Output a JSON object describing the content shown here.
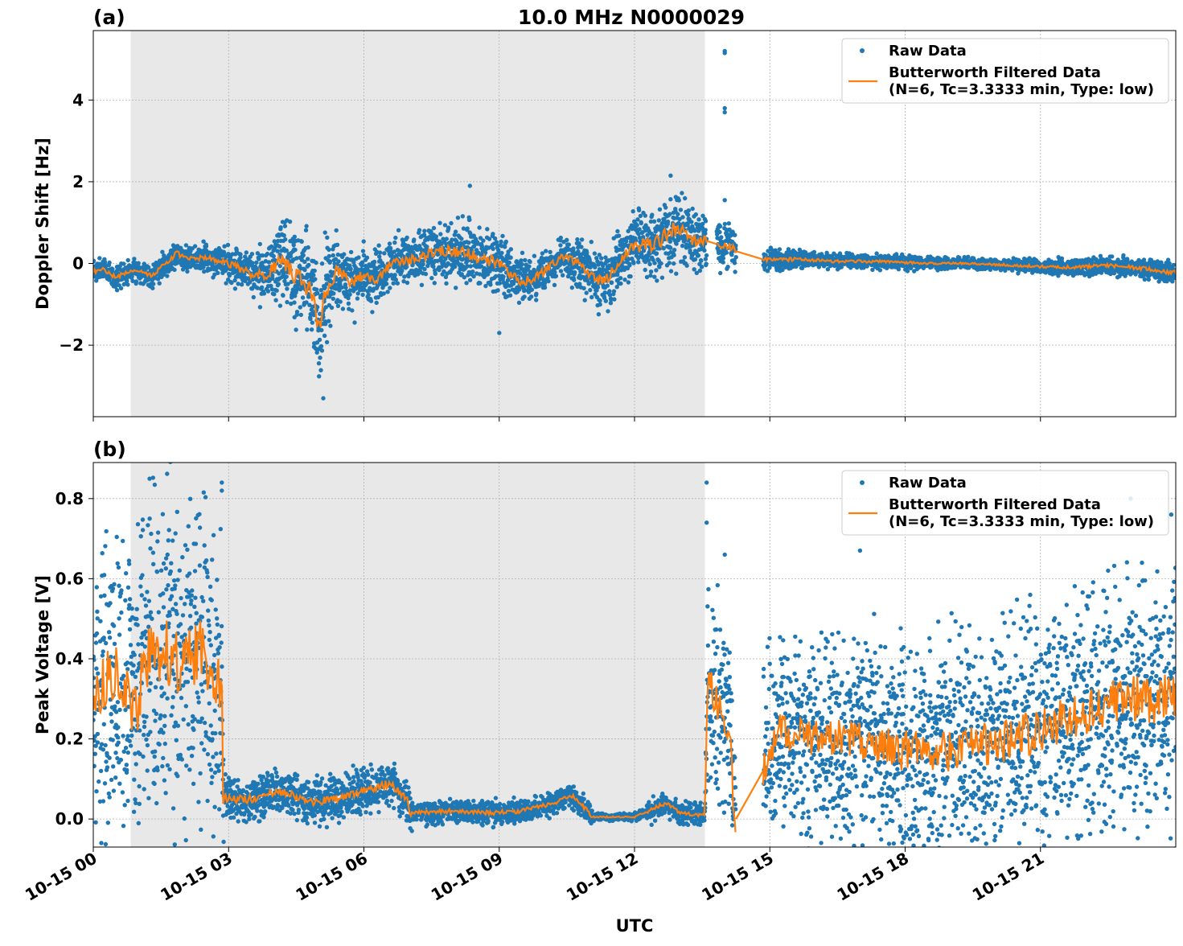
{
  "title": "10.0 MHz N0000029",
  "colors": {
    "raw": "#1f77b4",
    "filtered": "#ff7f0e",
    "shade": "#e8e8e8",
    "grid": "#b0b0b0"
  },
  "legend": {
    "raw": "Raw Data",
    "filtered_line1": "Butterworth Filtered Data",
    "filtered_line2": "(N=6, Tc=3.3333 min, Type: low)"
  },
  "x_axis": {
    "label": "UTC",
    "range_hours": [
      0,
      24
    ],
    "ticks": [
      {
        "hour": 0,
        "label": "10-15 00"
      },
      {
        "hour": 3,
        "label": "10-15 03"
      },
      {
        "hour": 6,
        "label": "10-15 06"
      },
      {
        "hour": 9,
        "label": "10-15 09"
      },
      {
        "hour": 12,
        "label": "10-15 12"
      },
      {
        "hour": 15,
        "label": "10-15 15"
      },
      {
        "hour": 18,
        "label": "10-15 18"
      },
      {
        "hour": 21,
        "label": "10-15 21"
      }
    ]
  },
  "chart_data": [
    {
      "type": "scatter",
      "panel": "(a)",
      "ylabel": "Doppler Shift [Hz]",
      "ylim": [
        -3.75,
        5.7
      ],
      "yticks": [
        {
          "v": -2,
          "label": "−2"
        },
        {
          "v": 0,
          "label": "0"
        },
        {
          "v": 2,
          "label": "2"
        },
        {
          "v": 4,
          "label": "4"
        }
      ],
      "shaded_hours": [
        0.83,
        13.56
      ],
      "gaps": [
        [
          13.6,
          13.82
        ],
        [
          14.25,
          14.85
        ]
      ],
      "grid": true,
      "legend_position": "top-right",
      "series": [
        {
          "name": "Raw Data",
          "kind": "points"
        },
        {
          "name": "Butterworth Filtered Data (N=6, Tc=3.3333 min, Type: low)",
          "kind": "line"
        }
      ],
      "trend": [
        [
          0.0,
          -0.2
        ],
        [
          0.25,
          -0.15
        ],
        [
          0.5,
          -0.35
        ],
        [
          0.75,
          -0.2
        ],
        [
          1.0,
          -0.15
        ],
        [
          1.3,
          -0.3
        ],
        [
          1.6,
          0.0
        ],
        [
          1.85,
          0.25
        ],
        [
          2.1,
          0.1
        ],
        [
          2.5,
          0.15
        ],
        [
          3.0,
          0.0
        ],
        [
          3.3,
          -0.15
        ],
        [
          3.6,
          -0.3
        ],
        [
          3.9,
          -0.2
        ],
        [
          4.2,
          0.05
        ],
        [
          4.5,
          -0.3
        ],
        [
          4.8,
          -0.6
        ],
        [
          5.0,
          -1.6
        ],
        [
          5.1,
          -0.9
        ],
        [
          5.4,
          -0.2
        ],
        [
          5.7,
          -0.45
        ],
        [
          6.0,
          -0.3
        ],
        [
          6.3,
          -0.4
        ],
        [
          6.6,
          0.0
        ],
        [
          6.9,
          0.1
        ],
        [
          7.2,
          0.1
        ],
        [
          7.5,
          0.3
        ],
        [
          7.9,
          0.3
        ],
        [
          8.3,
          0.25
        ],
        [
          8.6,
          0.1
        ],
        [
          8.9,
          0.05
        ],
        [
          9.2,
          -0.2
        ],
        [
          9.5,
          -0.45
        ],
        [
          9.8,
          -0.35
        ],
        [
          10.1,
          -0.1
        ],
        [
          10.4,
          0.15
        ],
        [
          10.8,
          0.0
        ],
        [
          11.0,
          -0.3
        ],
        [
          11.3,
          -0.45
        ],
        [
          11.6,
          -0.1
        ],
        [
          11.9,
          0.4
        ],
        [
          12.3,
          0.45
        ],
        [
          12.6,
          0.55
        ],
        [
          12.8,
          0.85
        ],
        [
          13.0,
          0.8
        ],
        [
          13.3,
          0.6
        ],
        [
          13.6,
          0.55
        ],
        [
          13.9,
          0.45
        ],
        [
          14.1,
          0.45
        ],
        [
          14.25,
          0.3
        ],
        [
          14.85,
          0.1
        ],
        [
          15.5,
          0.1
        ],
        [
          16.5,
          0.05
        ],
        [
          17.5,
          0.05
        ],
        [
          18.5,
          0.0
        ],
        [
          19.5,
          0.0
        ],
        [
          20.5,
          -0.05
        ],
        [
          21.5,
          -0.1
        ],
        [
          22.5,
          -0.05
        ],
        [
          23.3,
          -0.12
        ],
        [
          23.8,
          -0.2
        ],
        [
          24.0,
          -0.22
        ]
      ],
      "spread": [
        [
          0.0,
          0.12
        ],
        [
          1.0,
          0.12
        ],
        [
          2.8,
          0.15
        ],
        [
          3.5,
          0.25
        ],
        [
          4.2,
          0.45
        ],
        [
          5.0,
          0.65
        ],
        [
          5.3,
          0.4
        ],
        [
          6.0,
          0.3
        ],
        [
          7.2,
          0.25
        ],
        [
          8.3,
          0.35
        ],
        [
          9.5,
          0.25
        ],
        [
          10.5,
          0.2
        ],
        [
          11.0,
          0.35
        ],
        [
          11.8,
          0.3
        ],
        [
          12.8,
          0.45
        ],
        [
          13.6,
          0.3
        ],
        [
          14.2,
          0.2
        ],
        [
          14.85,
          0.12
        ],
        [
          16.0,
          0.08
        ],
        [
          20.0,
          0.06
        ],
        [
          22.5,
          0.1
        ],
        [
          24.0,
          0.12
        ]
      ],
      "outliers": [
        [
          14.0,
          5.2
        ],
        [
          14.0,
          5.15
        ],
        [
          14.0,
          3.8
        ],
        [
          14.0,
          3.7
        ],
        [
          14.0,
          1.55
        ],
        [
          8.35,
          1.9
        ],
        [
          12.8,
          2.15
        ],
        [
          5.1,
          -3.3
        ],
        [
          9.0,
          -1.7
        ]
      ]
    },
    {
      "type": "scatter",
      "panel": "(b)",
      "ylabel": "Peak Voltage [V]",
      "ylim": [
        -0.07,
        0.89
      ],
      "yticks": [
        {
          "v": 0.0,
          "label": "0.0"
        },
        {
          "v": 0.2,
          "label": "0.2"
        },
        {
          "v": 0.4,
          "label": "0.4"
        },
        {
          "v": 0.6,
          "label": "0.6"
        },
        {
          "v": 0.8,
          "label": "0.8"
        }
      ],
      "shaded_hours": [
        0.83,
        13.56
      ],
      "gaps": [
        [
          14.25,
          14.85
        ]
      ],
      "grid": true,
      "legend_position": "top-right",
      "series": [
        {
          "name": "Raw Data",
          "kind": "points"
        },
        {
          "name": "Butterworth Filtered Data (N=6, Tc=3.3333 min, Type: low)",
          "kind": "line"
        }
      ],
      "trend": [
        [
          0.0,
          0.3
        ],
        [
          0.5,
          0.38
        ],
        [
          0.9,
          0.25
        ],
        [
          1.2,
          0.4
        ],
        [
          1.6,
          0.42
        ],
        [
          2.0,
          0.38
        ],
        [
          2.4,
          0.42
        ],
        [
          2.85,
          0.35
        ],
        [
          2.88,
          0.05
        ],
        [
          3.5,
          0.05
        ],
        [
          4.3,
          0.07
        ],
        [
          4.8,
          0.04
        ],
        [
          5.4,
          0.05
        ],
        [
          6.0,
          0.07
        ],
        [
          6.6,
          0.09
        ],
        [
          6.95,
          0.05
        ],
        [
          7.0,
          0.015
        ],
        [
          8.0,
          0.02
        ],
        [
          8.8,
          0.015
        ],
        [
          9.5,
          0.02
        ],
        [
          10.2,
          0.04
        ],
        [
          10.6,
          0.06
        ],
        [
          11.0,
          0.015
        ],
        [
          11.05,
          0.005
        ],
        [
          12.0,
          0.005
        ],
        [
          12.3,
          0.02
        ],
        [
          12.7,
          0.04
        ],
        [
          13.0,
          0.015
        ],
        [
          13.56,
          0.01
        ],
        [
          13.62,
          0.35
        ],
        [
          14.0,
          0.25
        ],
        [
          14.15,
          0.2
        ],
        [
          14.2,
          -0.01
        ],
        [
          14.85,
          0.12
        ],
        [
          15.2,
          0.22
        ],
        [
          16.0,
          0.2
        ],
        [
          17.0,
          0.2
        ],
        [
          18.0,
          0.17
        ],
        [
          19.0,
          0.17
        ],
        [
          20.0,
          0.19
        ],
        [
          21.0,
          0.22
        ],
        [
          22.0,
          0.27
        ],
        [
          23.0,
          0.3
        ],
        [
          24.0,
          0.3
        ]
      ],
      "spread": [
        [
          0.0,
          0.14
        ],
        [
          1.0,
          0.18
        ],
        [
          2.8,
          0.18
        ],
        [
          2.9,
          0.025
        ],
        [
          7.0,
          0.025
        ],
        [
          7.1,
          0.012
        ],
        [
          11.0,
          0.012
        ],
        [
          11.1,
          0.004
        ],
        [
          12.2,
          0.004
        ],
        [
          12.3,
          0.012
        ],
        [
          13.56,
          0.012
        ],
        [
          13.62,
          0.12
        ],
        [
          14.2,
          0.08
        ],
        [
          14.85,
          0.1
        ],
        [
          24.0,
          0.14
        ]
      ],
      "outliers": [
        [
          2.85,
          0.84
        ],
        [
          2.85,
          0.82
        ],
        [
          13.6,
          0.84
        ],
        [
          13.6,
          0.74
        ],
        [
          14.0,
          0.66
        ],
        [
          17.0,
          0.67
        ],
        [
          23.0,
          0.8
        ],
        [
          23.9,
          0.76
        ],
        [
          22.5,
          0.62
        ],
        [
          1.25,
          0.75
        ]
      ]
    }
  ]
}
